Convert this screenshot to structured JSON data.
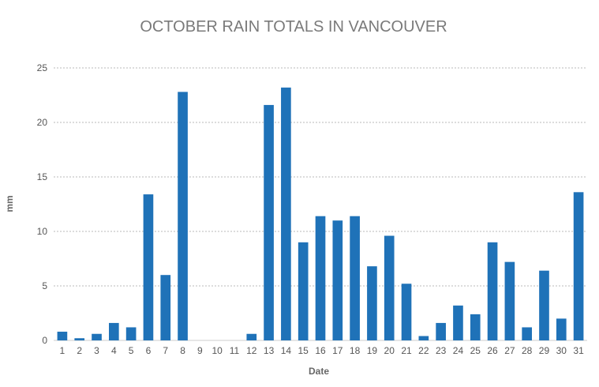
{
  "chart_data": {
    "type": "bar",
    "title": "OCTOBER RAIN TOTALS IN VANCOUVER",
    "xlabel": "Date",
    "ylabel": "mm",
    "categories": [
      "1",
      "2",
      "3",
      "4",
      "5",
      "6",
      "7",
      "8",
      "9",
      "10",
      "11",
      "12",
      "13",
      "14",
      "15",
      "16",
      "17",
      "18",
      "19",
      "20",
      "21",
      "22",
      "23",
      "24",
      "25",
      "26",
      "27",
      "28",
      "29",
      "30",
      "31"
    ],
    "values": [
      0.8,
      0.2,
      0.6,
      1.6,
      1.2,
      13.4,
      6.0,
      22.8,
      0,
      0,
      0,
      0.6,
      21.6,
      23.2,
      9.0,
      11.4,
      11.0,
      11.4,
      6.8,
      9.6,
      5.2,
      0.4,
      1.6,
      3.2,
      2.4,
      9.0,
      7.2,
      1.2,
      6.4,
      2.0,
      13.6
    ],
    "yticks": [
      "0",
      "5",
      "10",
      "15",
      "20",
      "25"
    ],
    "ylim": [
      0,
      25
    ],
    "grid": true,
    "bar_color": "#1f72b8"
  }
}
